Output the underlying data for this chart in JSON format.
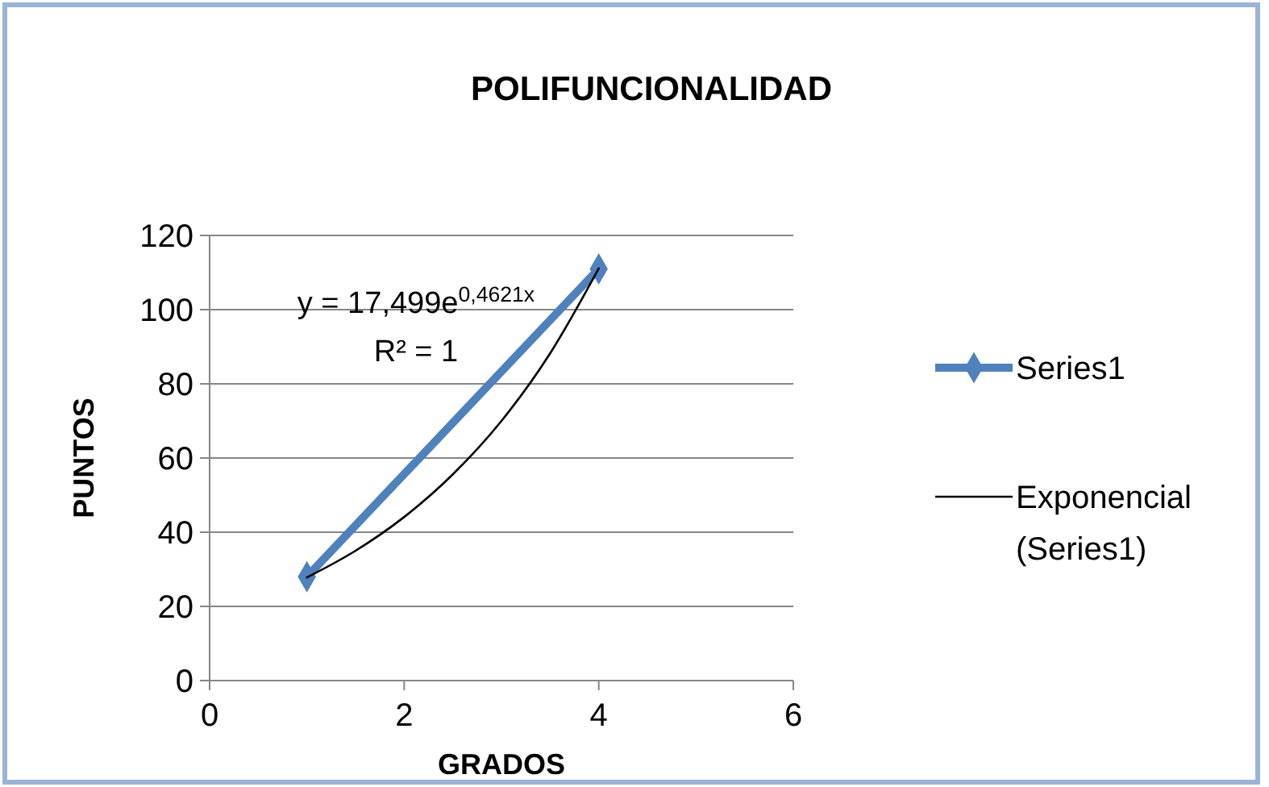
{
  "chart_data": {
    "type": "line",
    "title": "POLIFUNCIONALIDAD",
    "xlabel": "GRADOS",
    "ylabel": "PUNTOS",
    "annotations": [
      "y = 17,499e$^{0,4621x}$",
      "R² = 1"
    ],
    "xlim": [
      0,
      6
    ],
    "xticks": [
      0,
      2,
      4,
      6
    ],
    "ylim": [
      0,
      120
    ],
    "yticks": [
      0,
      20,
      40,
      60,
      80,
      100,
      120
    ],
    "grid": "y",
    "legend": "right",
    "series": [
      {
        "name": "Series1",
        "color": "#4f81bd",
        "marker": "diamond",
        "x": [
          1,
          4
        ],
        "values": [
          28,
          111
        ]
      },
      {
        "name": "Exponencial (Series1)",
        "color": "#000000",
        "marker": "none",
        "x": [
          1,
          1.5,
          2,
          2.5,
          3,
          3.5,
          4
        ],
        "values": [
          27.8,
          35.0,
          44.1,
          55.6,
          70.0,
          88.2,
          111.1
        ]
      }
    ]
  }
}
